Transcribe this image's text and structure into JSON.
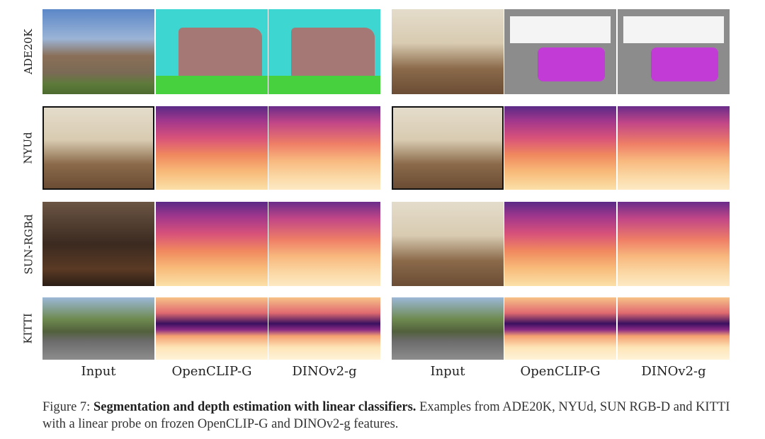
{
  "figure": {
    "rows": [
      {
        "label": "ADE20K",
        "task": "segmentation"
      },
      {
        "label": "NYUd",
        "task": "depth"
      },
      {
        "label": "SUN-RGBd",
        "task": "depth"
      },
      {
        "label": "KITTI",
        "task": "depth"
      }
    ],
    "columns": [
      "Input",
      "OpenCLIP-G",
      "DINOv2-g",
      "Input",
      "OpenCLIP-G",
      "DINOv2-g"
    ],
    "colormap_depth": "magma",
    "segmentation_colors": {
      "sky": "#3ed6d0",
      "building": "#a57876",
      "grass": "#47d13f",
      "bed": "#c23bd6"
    }
  },
  "caption": {
    "prefix": "Figure 7: ",
    "bold": "Segmentation and depth estimation with linear classifiers.",
    "rest": " Examples from ADE20K, NYUd, SUN RGB-D and KITTI with a linear probe on frozen OpenCLIP-G and DINOv2-g features."
  }
}
